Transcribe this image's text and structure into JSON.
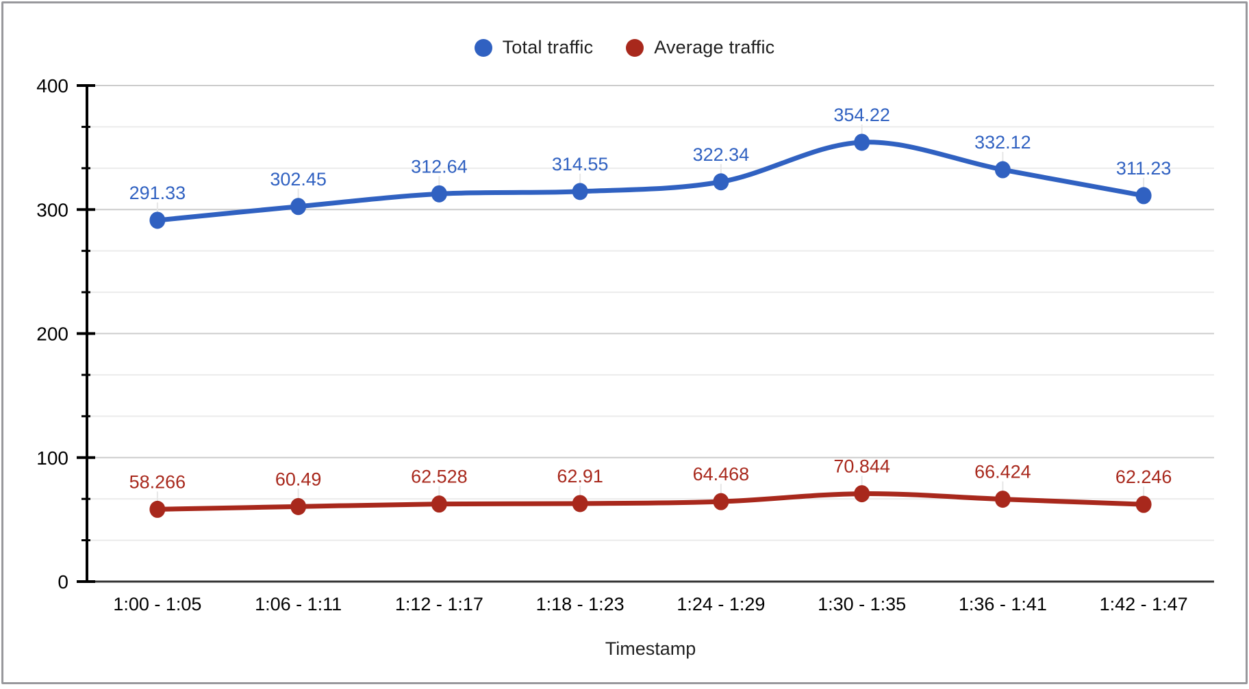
{
  "legend": {
    "items": [
      {
        "label": "Total traffic",
        "color": "#3061c1"
      },
      {
        "label": "Average traffic",
        "color": "#a8281c"
      }
    ]
  },
  "chart_data": {
    "type": "line",
    "title": "",
    "xlabel": "Timestamp",
    "ylabel": "",
    "categories": [
      "1:00 - 1:05",
      "1:06 - 1:11",
      "1:12 - 1:17",
      "1:18 - 1:23",
      "1:24 - 1:29",
      "1:30 - 1:35",
      "1:36 - 1:41",
      "1:42 - 1:47"
    ],
    "series": [
      {
        "name": "Total traffic",
        "color": "#3061c1",
        "values": [
          291.33,
          302.45,
          312.64,
          314.55,
          322.34,
          354.22,
          332.12,
          311.23
        ],
        "labels": [
          "291.33",
          "302.45",
          "312.64",
          "314.55",
          "322.34",
          "354.22",
          "332.12",
          "311.23"
        ]
      },
      {
        "name": "Average traffic",
        "color": "#a8281c",
        "values": [
          58.266,
          60.49,
          62.528,
          62.91,
          64.468,
          70.844,
          66.424,
          62.246
        ],
        "labels": [
          "58.266",
          "60.49",
          "62.528",
          "62.91",
          "64.468",
          "70.844",
          "66.424",
          "62.246"
        ]
      }
    ],
    "y_axis": {
      "min": 0,
      "max": 400,
      "major_step": 100,
      "minor_divisions": 3,
      "tick_labels": [
        "0",
        "100",
        "200",
        "300",
        "400"
      ]
    },
    "grid": true,
    "smooth": true,
    "point_labels": true,
    "legend_position": "top"
  },
  "colors": {
    "frame_border": "#98989c",
    "grid_major": "#cccccc",
    "grid_minor": "#ebebeb",
    "baseline": "#333333",
    "axis_line": "#000000",
    "tick_text": "#000000",
    "axis_title_text": "#1f1f1f",
    "label_leader": "#e6e6e6",
    "background": "#ffffff"
  }
}
